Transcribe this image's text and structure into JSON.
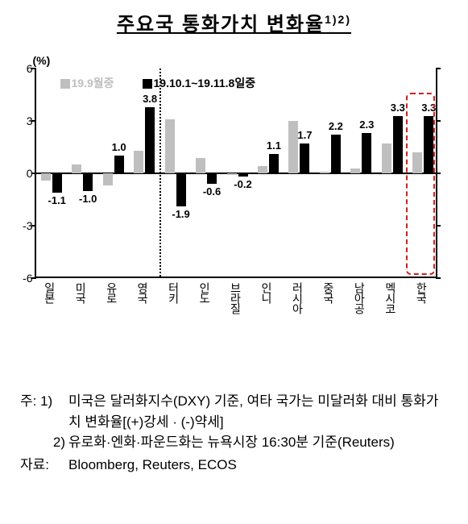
{
  "title_main": "주요국 통화가치 변화율",
  "title_sup": "1)2)",
  "chart": {
    "type": "bar",
    "y_unit": "(%)",
    "ylim": [
      -6,
      6
    ],
    "yticks": [
      -6,
      -3,
      0,
      3,
      6
    ],
    "series": [
      {
        "name": "19.9월중",
        "color": "#bfbfbf"
      },
      {
        "name": "19.10.1~19.11.8일중",
        "color": "#000000"
      }
    ],
    "legend_label_1": "19.9월중",
    "legend_label_2": "19.10.1~19.11.8일중",
    "divider_after_index": 3,
    "highlight_index": 12,
    "highlight_border_color": "#d02020",
    "categories": [
      "일본",
      "미국",
      "유로",
      "영국",
      "터키",
      "인도",
      "브라질",
      "인니",
      "러시아",
      "중국",
      "남아공",
      "멕시코",
      "한국"
    ],
    "grey_values": [
      -0.4,
      0.5,
      -0.7,
      1.3,
      3.1,
      0.9,
      -0.1,
      0.4,
      3.0,
      0.1,
      0.3,
      1.7,
      1.2
    ],
    "black_values": [
      -1.1,
      -1.0,
      1.0,
      3.8,
      -1.9,
      -0.6,
      -0.2,
      1.1,
      1.7,
      2.2,
      2.3,
      3.3,
      3.3
    ],
    "label_mode": "black_only",
    "label_values": [
      "-1.1",
      "-1.0",
      "1.0",
      "3.8",
      "-1.9",
      "-0.6",
      "-0.2",
      "1.1",
      "1.7",
      "2.2",
      "2.3",
      "3.3",
      "3.3"
    ]
  },
  "footnotes": {
    "label1": "주:  1)",
    "text1": "미국은 달러화지수(DXY) 기준, 여타 국가는 미달러화 대비 통화가치 변화율[(+)강세 · (-)약세]",
    "label2": "2)",
    "text2": "유로화·엔화·파운드화는 뉴욕시장 16:30분 기준(Reuters)"
  },
  "source": {
    "label": "자료:",
    "text": "Bloomberg,  Reuters,  ECOS"
  }
}
